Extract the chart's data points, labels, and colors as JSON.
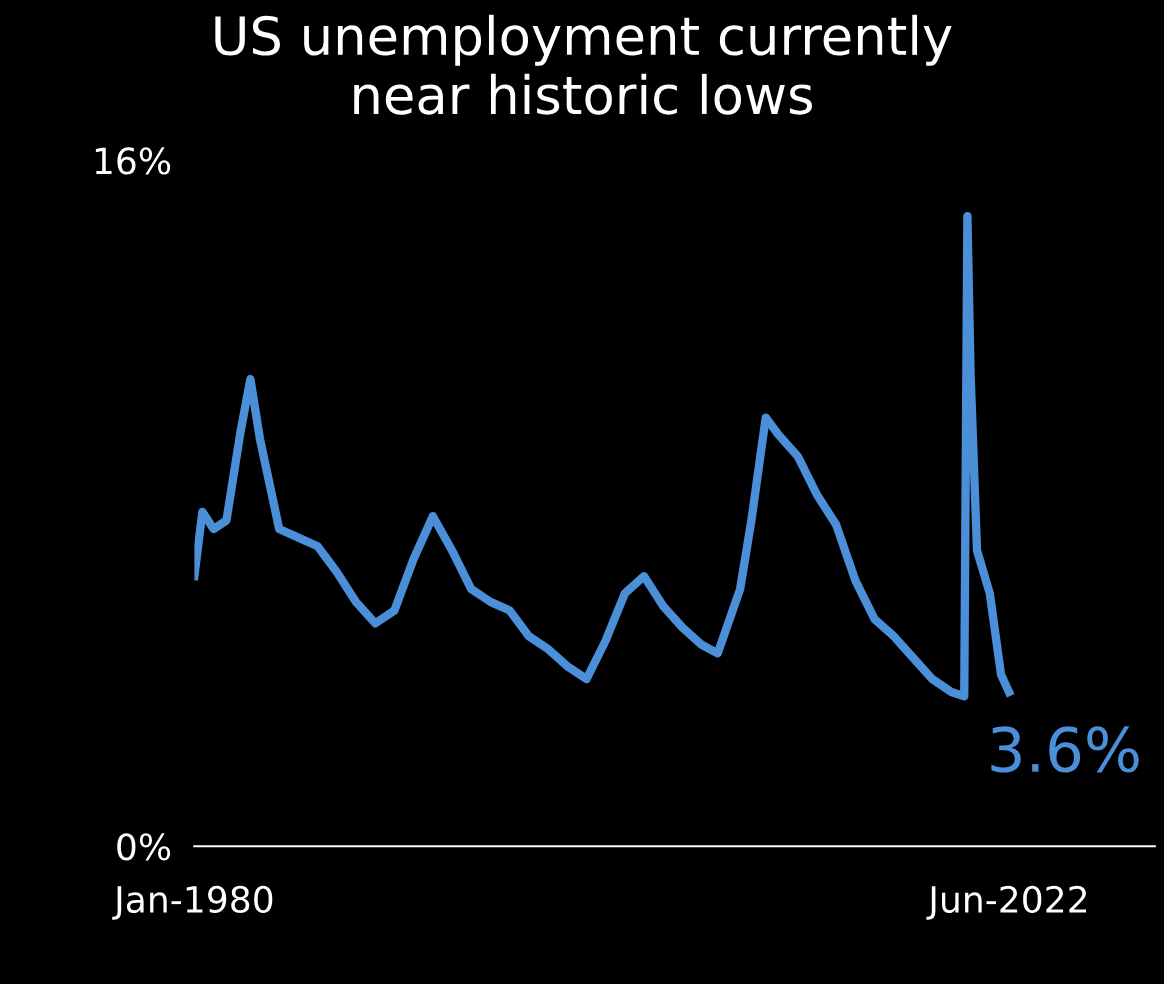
{
  "chart_data": {
    "type": "line",
    "title": "US unemployment currently\nnear historic lows",
    "x": [
      "1980-01",
      "1980-06",
      "1981-01",
      "1981-09",
      "1982-06",
      "1982-12",
      "1983-06",
      "1984-06",
      "1985-06",
      "1986-06",
      "1987-06",
      "1988-06",
      "1989-06",
      "1990-06",
      "1991-06",
      "1992-06",
      "1993-06",
      "1994-06",
      "1995-06",
      "1996-06",
      "1997-06",
      "1998-06",
      "1999-06",
      "2000-06",
      "2001-06",
      "2002-06",
      "2003-06",
      "2004-06",
      "2005-06",
      "2006-06",
      "2007-04",
      "2008-06",
      "2009-01",
      "2009-10",
      "2010-06",
      "2011-06",
      "2012-06",
      "2013-06",
      "2014-06",
      "2015-06",
      "2016-06",
      "2017-06",
      "2018-06",
      "2019-06",
      "2020-02",
      "2020-04",
      "2020-06",
      "2020-10",
      "2021-06",
      "2022-01",
      "2022-06"
    ],
    "series": [
      {
        "color": "#4a8fd8",
        "values": [
          6.3,
          7.8,
          7.4,
          7.6,
          9.7,
          10.9,
          9.5,
          7.4,
          7.2,
          7.0,
          6.4,
          5.7,
          5.2,
          5.5,
          6.7,
          7.7,
          6.9,
          6.0,
          5.7,
          5.5,
          4.9,
          4.6,
          4.2,
          3.9,
          4.8,
          5.9,
          6.3,
          5.6,
          5.1,
          4.7,
          4.5,
          6.0,
          7.6,
          10.0,
          9.6,
          9.1,
          8.2,
          7.5,
          6.2,
          5.3,
          4.9,
          4.4,
          3.9,
          3.6,
          3.5,
          14.7,
          11.0,
          6.9,
          5.9,
          4.0,
          3.6
        ]
      }
    ],
    "annotations": [
      {
        "text": "3.6%",
        "x": "2022-06",
        "y": 3.6
      }
    ],
    "xlim": [
      "1980-01",
      "2030-01"
    ],
    "xticks": [
      {
        "value": "1980-01",
        "label": "Jan-1980"
      },
      {
        "value": "2022-06",
        "label": "Jun-2022"
      }
    ],
    "ylim": [
      0,
      16
    ],
    "yticks": [
      {
        "value": 0,
        "label": "0%"
      },
      {
        "value": 16,
        "label": "16%"
      }
    ],
    "grid": false,
    "legend": false
  }
}
